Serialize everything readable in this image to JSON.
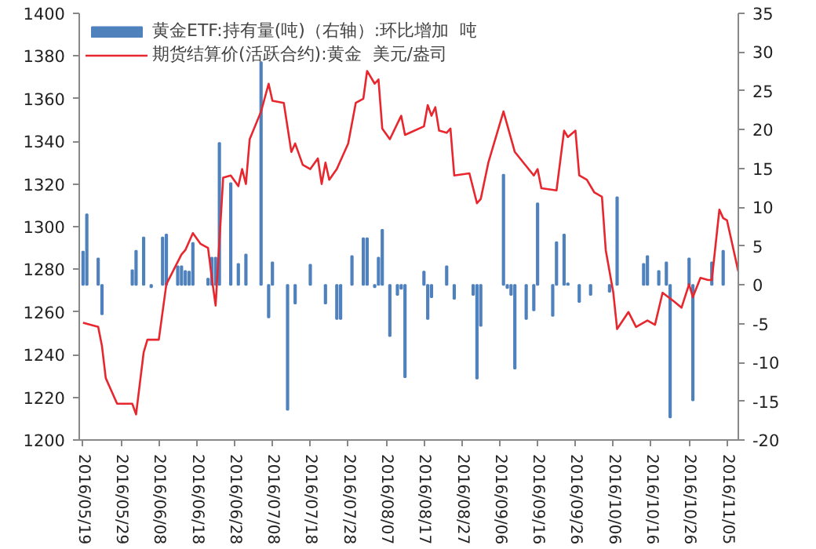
{
  "chart_data": {
    "type": "line",
    "xlim": [
      "2016-05-18",
      "2016-11-08"
    ],
    "xticks": [
      {
        "value": "2016-05-19",
        "label": "2016/05/19"
      },
      {
        "value": "2016-05-29",
        "label": "2016/05/29"
      },
      {
        "value": "2016-06-08",
        "label": "2016/06/08"
      },
      {
        "value": "2016-06-18",
        "label": "2016/06/18"
      },
      {
        "value": "2016-06-28",
        "label": "2016/06/28"
      },
      {
        "value": "2016-07-08",
        "label": "2016/07/08"
      },
      {
        "value": "2016-07-18",
        "label": "2016/07/18"
      },
      {
        "value": "2016-07-28",
        "label": "2016/07/28"
      },
      {
        "value": "2016-08-07",
        "label": "2016/08/07"
      },
      {
        "value": "2016-08-17",
        "label": "2016/08/17"
      },
      {
        "value": "2016-08-27",
        "label": "2016/08/27"
      },
      {
        "value": "2016-09-06",
        "label": "2016/09/06"
      },
      {
        "value": "2016-09-16",
        "label": "2016/09/16"
      },
      {
        "value": "2016-09-26",
        "label": "2016/09/26"
      },
      {
        "value": "2016-10-06",
        "label": "2016/10/06"
      },
      {
        "value": "2016-10-16",
        "label": "2016/10/16"
      },
      {
        "value": "2016-10-26",
        "label": "2016/10/26"
      },
      {
        "value": "2016-11-05",
        "label": "2016/11/05"
      }
    ],
    "ylim": [
      1200,
      1400
    ],
    "yticks": [
      1200,
      1220,
      1240,
      1260,
      1280,
      1300,
      1320,
      1340,
      1360,
      1380,
      1400
    ],
    "y2lim": [
      -20,
      35
    ],
    "y2ticks": [
      -20,
      -15,
      -10,
      -5,
      0,
      5,
      10,
      15,
      20,
      25,
      30,
      35
    ],
    "grid": false,
    "legend": "top left",
    "marker": "none",
    "line_style": "solid",
    "series": [
      {
        "name": "黄金ETF:持有量(吨)（右轴）:环比增加  吨",
        "type": "bar",
        "axis": "y2",
        "color": "#4f81bd",
        "x": [
          "2016-05-19",
          "2016-05-20",
          "2016-05-23",
          "2016-05-24",
          "2016-06-01",
          "2016-06-02",
          "2016-06-04",
          "2016-06-06",
          "2016-06-09",
          "2016-06-10",
          "2016-06-13",
          "2016-06-14",
          "2016-06-15",
          "2016-06-16",
          "2016-06-17",
          "2016-06-21",
          "2016-06-22",
          "2016-06-23",
          "2016-06-24",
          "2016-06-27",
          "2016-06-29",
          "2016-07-01",
          "2016-07-05",
          "2016-07-07",
          "2016-07-08",
          "2016-07-12",
          "2016-07-14",
          "2016-07-18",
          "2016-07-22",
          "2016-07-25",
          "2016-07-26",
          "2016-07-29",
          "2016-08-01",
          "2016-08-02",
          "2016-08-04",
          "2016-08-05",
          "2016-08-06",
          "2016-08-08",
          "2016-08-10",
          "2016-08-11",
          "2016-08-12",
          "2016-08-17",
          "2016-08-18",
          "2016-08-19",
          "2016-08-23",
          "2016-08-25",
          "2016-08-30",
          "2016-08-31",
          "2016-09-01",
          "2016-09-07",
          "2016-09-08",
          "2016-09-09",
          "2016-09-10",
          "2016-09-13",
          "2016-09-15",
          "2016-09-16",
          "2016-09-20",
          "2016-09-21",
          "2016-09-23",
          "2016-09-24",
          "2016-09-27",
          "2016-09-30",
          "2016-10-05",
          "2016-10-07",
          "2016-10-14",
          "2016-10-15",
          "2016-10-18",
          "2016-10-20",
          "2016-10-21",
          "2016-10-26",
          "2016-10-27",
          "2016-11-01",
          "2016-11-04"
        ],
        "values": [
          4.3,
          9.1,
          3.4,
          -3.8,
          1.9,
          4.4,
          6.1,
          -0.3,
          6.1,
          6.5,
          2.4,
          2.4,
          1.8,
          1.7,
          5.4,
          0.8,
          3.5,
          3.5,
          18.3,
          13.1,
          2.7,
          3.9,
          28.7,
          -4.2,
          2.9,
          -16.1,
          -2.4,
          2.6,
          -2.4,
          -4.4,
          -4.4,
          3.7,
          6.0,
          6.0,
          -0.3,
          3.5,
          7.1,
          -6.6,
          -1.3,
          -0.5,
          -11.9,
          1.7,
          -4.4,
          -1.6,
          2.4,
          -1.8,
          -1.3,
          -12.1,
          -5.3,
          14.2,
          -0.4,
          -1.3,
          -10.8,
          -4.4,
          -3.3,
          10.5,
          -4.0,
          5.5,
          6.5,
          0.2,
          -2.2,
          -1.3,
          -0.9,
          11.3,
          2.7,
          3.7,
          1.8,
          2.9,
          -17.1,
          3.4,
          -14.9,
          2.9,
          4.4
        ]
      },
      {
        "name": "期货结算价(活跃合约):黄金  美元/盎司",
        "color": "#e8262d",
        "x": [
          "2016-05-19",
          "2016-05-23",
          "2016-05-24",
          "2016-05-25",
          "2016-05-26",
          "2016-05-28",
          "2016-06-01",
          "2016-06-02",
          "2016-06-04",
          "2016-06-05",
          "2016-06-08",
          "2016-06-10",
          "2016-06-12",
          "2016-06-14",
          "2016-06-15",
          "2016-06-17",
          "2016-06-19",
          "2016-06-21",
          "2016-06-22",
          "2016-06-23",
          "2016-06-25",
          "2016-06-27",
          "2016-06-29",
          "2016-06-30",
          "2016-07-01",
          "2016-07-02",
          "2016-07-05",
          "2016-07-07",
          "2016-07-08",
          "2016-07-11",
          "2016-07-13",
          "2016-07-14",
          "2016-07-16",
          "2016-07-18",
          "2016-07-20",
          "2016-07-21",
          "2016-07-22",
          "2016-07-23",
          "2016-07-25",
          "2016-07-28",
          "2016-07-30",
          "2016-08-01",
          "2016-08-02",
          "2016-08-04",
          "2016-08-05",
          "2016-08-06",
          "2016-08-08",
          "2016-08-11",
          "2016-08-12",
          "2016-08-17",
          "2016-08-18",
          "2016-08-19",
          "2016-08-20",
          "2016-08-21",
          "2016-08-23",
          "2016-08-24",
          "2016-08-25",
          "2016-08-29",
          "2016-08-31",
          "2016-09-01",
          "2016-09-03",
          "2016-09-07",
          "2016-09-10",
          "2016-09-15",
          "2016-09-16",
          "2016-09-17",
          "2016-09-21",
          "2016-09-23",
          "2016-09-24",
          "2016-09-26",
          "2016-09-27",
          "2016-09-29",
          "2016-10-01",
          "2016-10-03",
          "2016-10-04",
          "2016-10-06",
          "2016-10-07",
          "2016-10-10",
          "2016-10-12",
          "2016-10-15",
          "2016-10-17",
          "2016-10-19",
          "2016-10-22",
          "2016-10-24",
          "2016-10-26",
          "2016-10-27",
          "2016-10-29",
          "2016-10-31",
          "2016-11-01",
          "2016-11-03",
          "2016-11-04",
          "2016-11-05",
          "2016-11-08"
        ],
        "values": [
          1255,
          1253,
          1244,
          1229,
          1225,
          1217,
          1217,
          1212,
          1241,
          1247,
          1247,
          1273,
          1280,
          1287,
          1289,
          1297,
          1292,
          1290,
          1276,
          1263,
          1323,
          1324,
          1319,
          1327,
          1320,
          1341,
          1354,
          1367,
          1359,
          1358,
          1335,
          1339,
          1329,
          1327,
          1332,
          1320,
          1330,
          1322,
          1327,
          1339,
          1358,
          1360,
          1373,
          1367,
          1369,
          1346,
          1341,
          1352,
          1343,
          1347,
          1357,
          1352,
          1356,
          1345,
          1344,
          1346,
          1324,
          1325,
          1311,
          1313,
          1330,
          1354,
          1335,
          1324,
          1327,
          1318,
          1317,
          1345,
          1342,
          1345,
          1324,
          1322,
          1316,
          1314,
          1289,
          1269,
          1252,
          1260,
          1253,
          1256,
          1254,
          1269,
          1265,
          1262,
          1273,
          1267,
          1276,
          1275,
          1275,
          1308,
          1304,
          1303,
          1279
        ]
      }
    ]
  }
}
